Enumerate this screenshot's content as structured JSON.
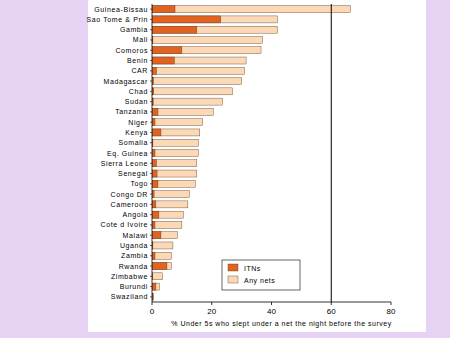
{
  "chart_data": {
    "type": "bar",
    "orientation": "horizontal",
    "x_label": "% Under 5s who slept under a net the night before the survey",
    "categories": [
      "Guinea-Bissau",
      "Sao Tome & Prin",
      "Gambia",
      "Mali",
      "Comoros",
      "Benin",
      "CAR",
      "Madagascar",
      "Chad",
      "Sudan",
      "Tanzania",
      "Niger",
      "Kenya",
      "Somalia",
      "Eq. Guinea",
      "Sierra Leone",
      "Senegal",
      "Togo",
      "Congo DR",
      "Cameroon",
      "Angola",
      "Cote d Ivoire",
      "Malawi",
      "Uganda",
      "Zambia",
      "Rwanda",
      "Zimbabwe",
      "Burundi",
      "Swaziland"
    ],
    "series": [
      {
        "name": "ITNs",
        "color": "#e2621f",
        "values": [
          7.7,
          23,
          15,
          0.3,
          10,
          7.5,
          1.5,
          0.5,
          0.6,
          0.4,
          2,
          1,
          3,
          0.3,
          1,
          1.5,
          1.7,
          2,
          0.7,
          1.3,
          2.3,
          1,
          3,
          0.3,
          1,
          5,
          0.2,
          1.3,
          0.3
        ]
      },
      {
        "name": "Any nets",
        "color": "#fcd9b6",
        "values": [
          66.4,
          42,
          42,
          37,
          36.5,
          31.5,
          31,
          30,
          27,
          23.5,
          20.5,
          17,
          16,
          15.5,
          15.5,
          15,
          15,
          14.5,
          12.5,
          12,
          10.5,
          10,
          8.5,
          7,
          6.5,
          6.5,
          3.5,
          2.5,
          0.6
        ]
      }
    ],
    "xlim": [
      0,
      80
    ],
    "xticks": [
      0,
      20,
      40,
      60,
      80
    ],
    "reference_line": 60,
    "grid": false,
    "legend": "lower center"
  }
}
